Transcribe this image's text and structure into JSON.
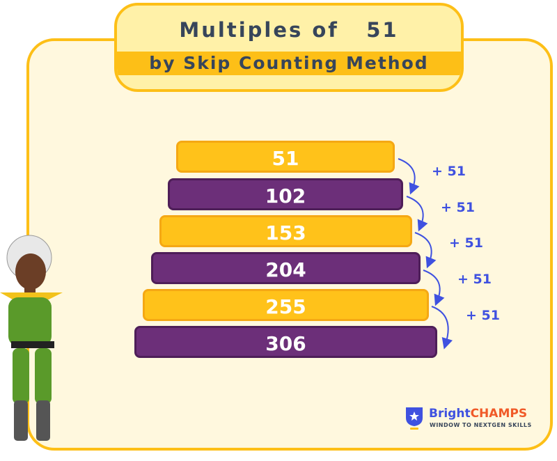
{
  "title": {
    "main": "Multiples of",
    "number": "51",
    "subtitle": "by Skip Counting Method"
  },
  "bars": [
    "51",
    "102",
    "153",
    "204",
    "255",
    "306"
  ],
  "step_label": "+ 51",
  "logo": {
    "bright": "Bright",
    "champs": "CHAMPS",
    "tagline": "WINDOW TO NEXTGEN SKILLS"
  },
  "colors": {
    "yellow": "#FFC21A",
    "purple": "#6C2F79",
    "arrow": "#3F51E0",
    "frame": "#FDBF17"
  }
}
